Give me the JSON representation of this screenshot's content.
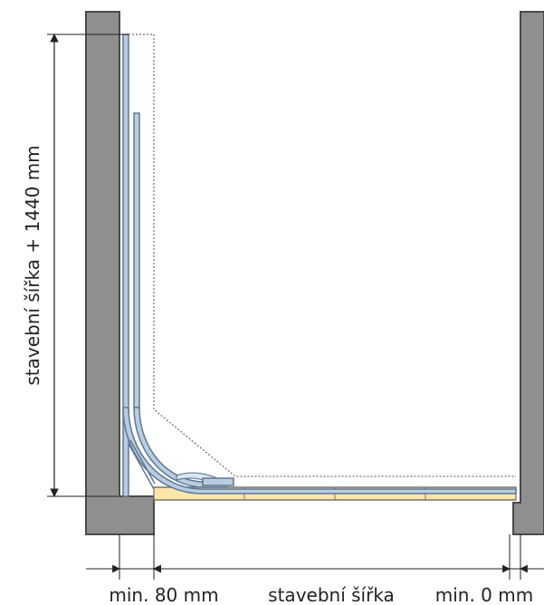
{
  "labels": {
    "height_dimension": "stavební šířka + 1440 mm",
    "left_min": "min. 80 mm",
    "width_dimension": "stavební šířka",
    "right_min": "min. 0 mm"
  },
  "colors": {
    "wall_fill": "#8f8f8f",
    "wall_stroke": "#4a4a4a",
    "glass_fill": "#b9cce0",
    "glass_stroke": "#5f7894",
    "floor_fill": "#fbe7aa",
    "floor_stroke": "#6d6d6d",
    "dimension_line": "#222222",
    "dotted_outline": "#4d4d4d"
  }
}
